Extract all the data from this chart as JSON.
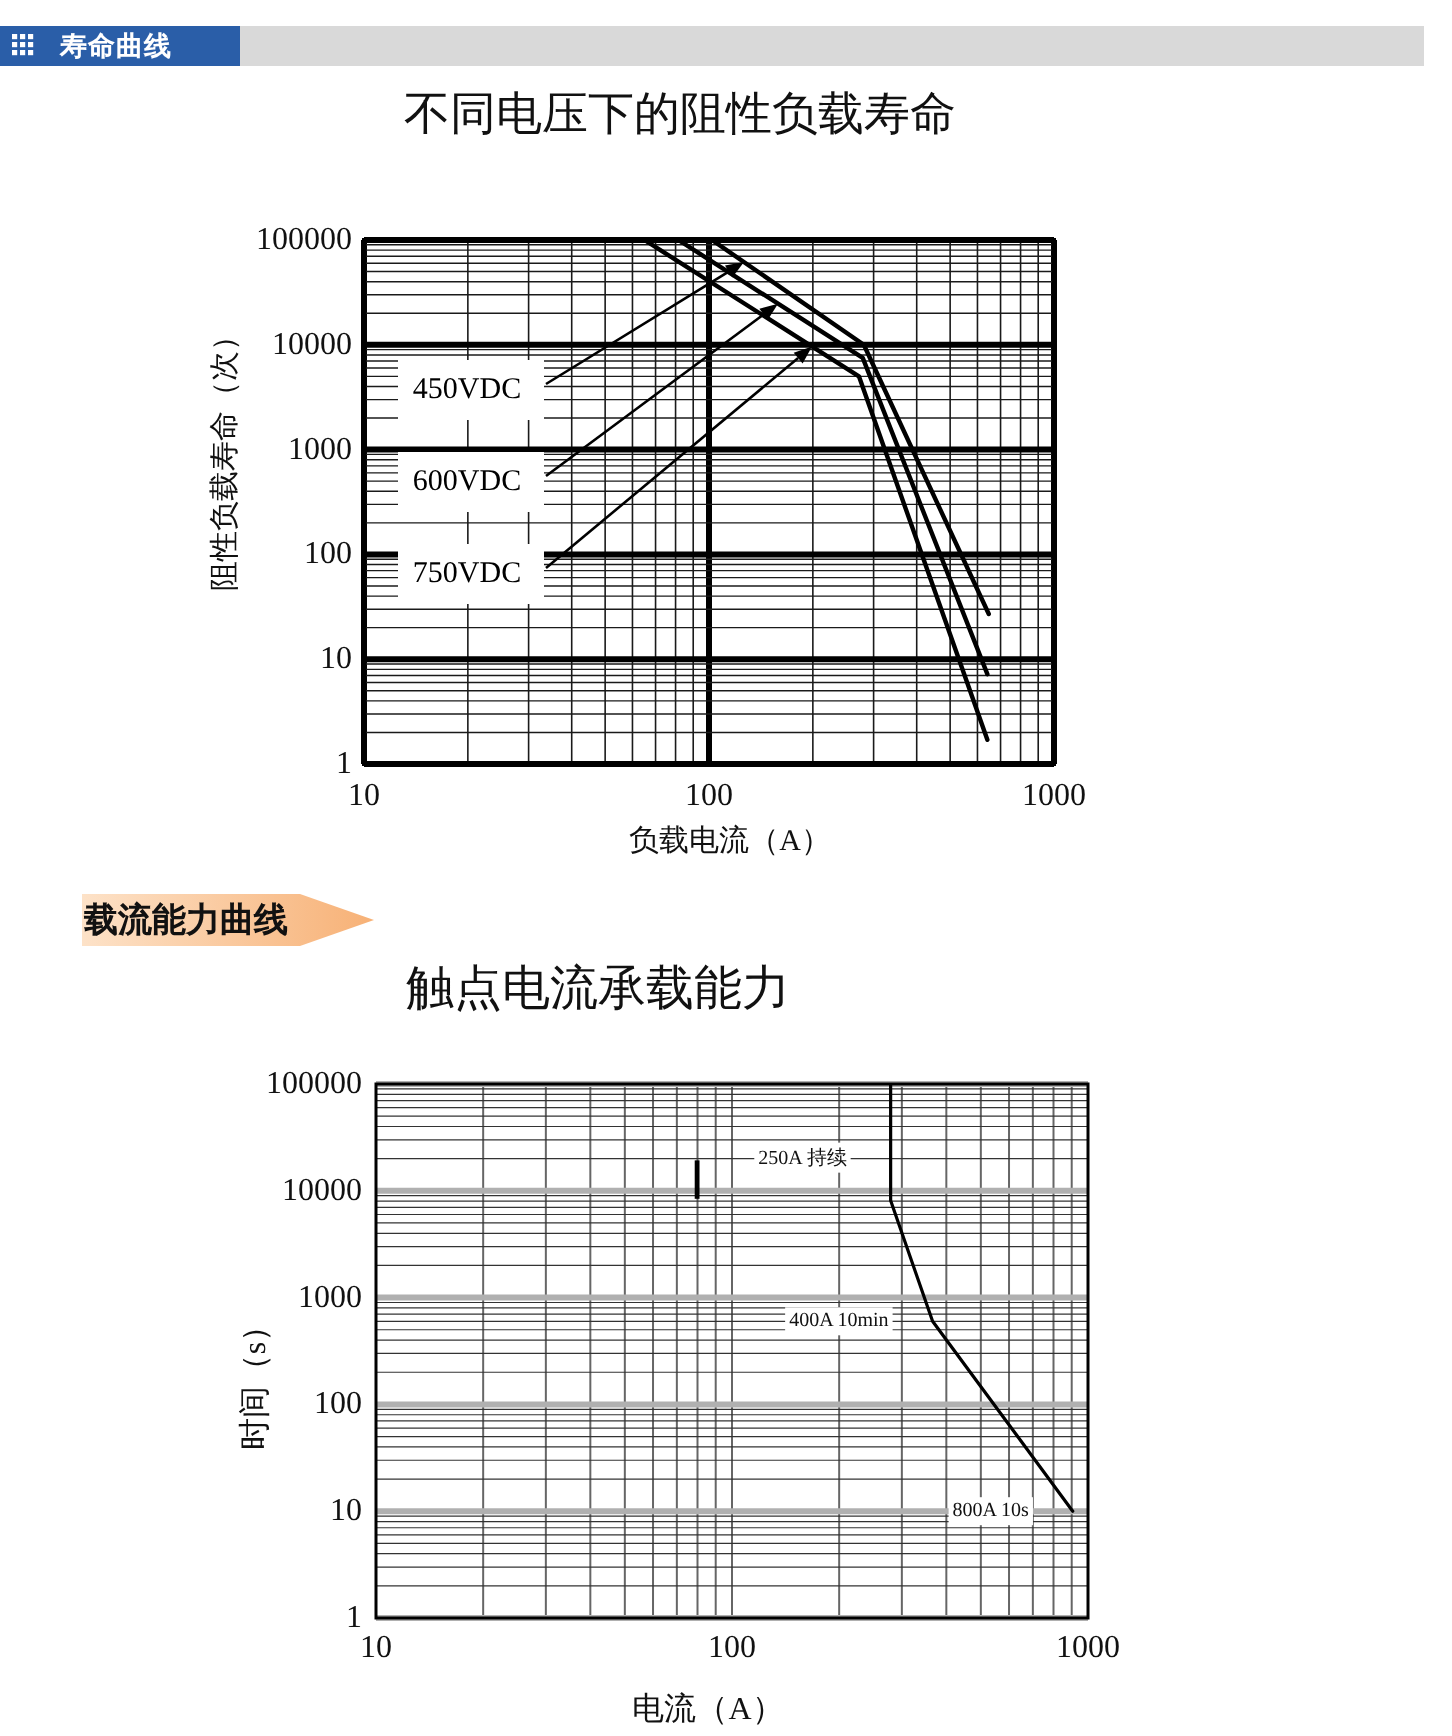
{
  "chart_data": [
    {
      "type": "line",
      "title": "不同电压下的阻性负载寿命",
      "xlabel": "负载电流（A）",
      "ylabel": "阻性负载寿命（次）",
      "log": "xy",
      "grid": true,
      "xlim": [
        10,
        1000
      ],
      "ylim": [
        1,
        100000
      ],
      "xticks": [
        10,
        {
          "value": 20,
          "label": null
        },
        {
          "value": 30,
          "label": null
        },
        {
          "value": 40,
          "label": null
        },
        {
          "value": 50,
          "label": null
        },
        {
          "value": 60,
          "label": null
        },
        {
          "value": 70,
          "label": null
        },
        {
          "value": 80,
          "label": null
        },
        {
          "value": 90,
          "label": null
        },
        100,
        {
          "value": 200,
          "label": null
        },
        {
          "value": 300,
          "label": null
        },
        {
          "value": 400,
          "label": null
        },
        {
          "value": 500,
          "label": null
        },
        {
          "value": 600,
          "label": null
        },
        {
          "value": 700,
          "label": null
        },
        {
          "value": 800,
          "label": null
        },
        {
          "value": 900,
          "label": null
        },
        1000
      ],
      "yticks": [
        1,
        {
          "value": 2,
          "label": null
        },
        {
          "value": 3,
          "label": null
        },
        {
          "value": 4,
          "label": null
        },
        {
          "value": 5,
          "label": null
        },
        {
          "value": 6,
          "label": null
        },
        {
          "value": 7,
          "label": null
        },
        {
          "value": 8,
          "label": null
        },
        {
          "value": 9,
          "label": null
        },
        10,
        {
          "value": 20,
          "label": null
        },
        {
          "value": 30,
          "label": null
        },
        {
          "value": 40,
          "label": null
        },
        {
          "value": 50,
          "label": null
        },
        {
          "value": 60,
          "label": null
        },
        {
          "value": 70,
          "label": null
        },
        {
          "value": 80,
          "label": null
        },
        {
          "value": 90,
          "label": null
        },
        100,
        {
          "value": 200,
          "label": null
        },
        {
          "value": 300,
          "label": null
        },
        {
          "value": 400,
          "label": null
        },
        {
          "value": 500,
          "label": null
        },
        {
          "value": 600,
          "label": null
        },
        {
          "value": 700,
          "label": null
        },
        {
          "value": 800,
          "label": null
        },
        {
          "value": 900,
          "label": null
        },
        1000,
        {
          "value": 2000,
          "label": null
        },
        {
          "value": 3000,
          "label": null
        },
        {
          "value": 4000,
          "label": null
        },
        {
          "value": 5000,
          "label": null
        },
        {
          "value": 6000,
          "label": null
        },
        {
          "value": 7000,
          "label": null
        },
        {
          "value": 8000,
          "label": null
        },
        {
          "value": 9000,
          "label": null
        },
        10000,
        {
          "value": 20000,
          "label": null
        },
        {
          "value": 30000,
          "label": null
        },
        {
          "value": 40000,
          "label": null
        },
        {
          "value": 50000,
          "label": null
        },
        {
          "value": 60000,
          "label": null
        },
        {
          "value": 70000,
          "label": null
        },
        {
          "value": 80000,
          "label": null
        },
        {
          "value": 90000,
          "label": null
        },
        100000
      ],
      "series": [
        {
          "name": "450VDC",
          "color": "#000000",
          "x": [
            102,
            281,
            647
          ],
          "values": [
            100000,
            10000,
            27
          ]
        },
        {
          "name": "600VDC",
          "color": "#000000",
          "x": [
            81.5,
            279,
            641
          ],
          "values": [
            100000,
            7500,
            7.2
          ]
        },
        {
          "name": "750VDC",
          "color": "#000000",
          "x": [
            65,
            272,
            641
          ],
          "values": [
            100000,
            5000,
            1.7
          ]
        }
      ],
      "annotations": [
        "寿命曲线"
      ]
    },
    {
      "type": "line",
      "title": "触点电流承载能力",
      "xlabel": "电流（A）",
      "ylabel": "时间（s）",
      "log": "xy",
      "grid": true,
      "xlim": [
        10,
        1000
      ],
      "ylim": [
        1,
        100000
      ],
      "xticks": [
        10,
        {
          "value": 20,
          "label": null
        },
        {
          "value": 30,
          "label": null
        },
        {
          "value": 40,
          "label": null
        },
        {
          "value": 50,
          "label": null
        },
        {
          "value": 60,
          "label": null
        },
        {
          "value": 70,
          "label": null
        },
        {
          "value": 80,
          "label": null
        },
        {
          "value": 90,
          "label": null
        },
        100,
        {
          "value": 200,
          "label": null
        },
        {
          "value": 300,
          "label": null
        },
        {
          "value": 400,
          "label": null
        },
        {
          "value": 500,
          "label": null
        },
        {
          "value": 600,
          "label": null
        },
        {
          "value": 700,
          "label": null
        },
        {
          "value": 800,
          "label": null
        },
        {
          "value": 900,
          "label": null
        },
        1000
      ],
      "yticks": [
        1,
        {
          "value": 2,
          "label": null
        },
        {
          "value": 3,
          "label": null
        },
        {
          "value": 4,
          "label": null
        },
        {
          "value": 5,
          "label": null
        },
        {
          "value": 6,
          "label": null
        },
        {
          "value": 7,
          "label": null
        },
        {
          "value": 8,
          "label": null
        },
        {
          "value": 9,
          "label": null
        },
        10,
        {
          "value": 20,
          "label": null
        },
        {
          "value": 30,
          "label": null
        },
        {
          "value": 40,
          "label": null
        },
        {
          "value": 50,
          "label": null
        },
        {
          "value": 60,
          "label": null
        },
        {
          "value": 70,
          "label": null
        },
        {
          "value": 80,
          "label": null
        },
        {
          "value": 90,
          "label": null
        },
        100,
        {
          "value": 200,
          "label": null
        },
        {
          "value": 300,
          "label": null
        },
        {
          "value": 400,
          "label": null
        },
        {
          "value": 500,
          "label": null
        },
        {
          "value": 600,
          "label": null
        },
        {
          "value": 700,
          "label": null
        },
        {
          "value": 800,
          "label": null
        },
        {
          "value": 900,
          "label": null
        },
        1000,
        {
          "value": 2000,
          "label": null
        },
        {
          "value": 3000,
          "label": null
        },
        {
          "value": 4000,
          "label": null
        },
        {
          "value": 5000,
          "label": null
        },
        {
          "value": 6000,
          "label": null
        },
        {
          "value": 7000,
          "label": null
        },
        {
          "value": 8000,
          "label": null
        },
        {
          "value": 9000,
          "label": null
        },
        10000,
        {
          "value": 20000,
          "label": null
        },
        {
          "value": 30000,
          "label": null
        },
        {
          "value": 40000,
          "label": null
        },
        {
          "value": 50000,
          "label": null
        },
        {
          "value": 60000,
          "label": null
        },
        {
          "value": 70000,
          "label": null
        },
        {
          "value": 80000,
          "label": null
        },
        {
          "value": 90000,
          "label": null
        },
        100000
      ],
      "series": [
        {
          "color": "#000000",
          "x": [
            279,
            279,
            366,
            906
          ],
          "values": [
            100000,
            8100,
            600,
            10
          ]
        }
      ],
      "annotations": [
        "载流能力曲线",
        {
          "text": "250A 持续",
          "x": 279,
          "y": 20000
        },
        {
          "text": "400A 10min",
          "x": 366,
          "y": 600
        },
        {
          "text": "800A 10s",
          "x": 906,
          "y": 10
        }
      ]
    }
  ]
}
